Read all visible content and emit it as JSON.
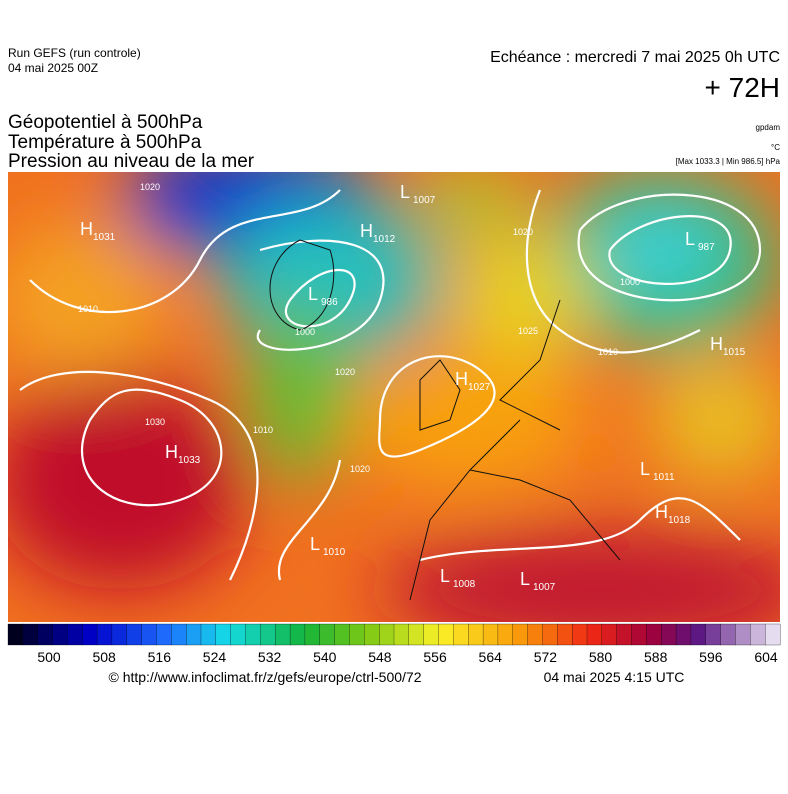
{
  "header": {
    "run": "Run GEFS (run controle)",
    "date": "04 mai 2025 00Z",
    "echeance": "Echéance : mercredi 7 mai 2025 0h UTC",
    "lead": "+ 72H",
    "titles": [
      "Géopotentiel à 500hPa",
      "Température à 500hPa",
      "Pression au niveau de la mer"
    ],
    "units": [
      "gpdam",
      "°C",
      "[Max 1033.3 | Min 986.5] hPa"
    ]
  },
  "pressure_centers": [
    {
      "type": "H",
      "value": "1031"
    },
    {
      "type": "L",
      "value": "1007"
    },
    {
      "type": "H",
      "value": "1012"
    },
    {
      "type": "L",
      "value": "986"
    },
    {
      "type": "L",
      "value": "987"
    },
    {
      "type": "H",
      "value": "1015"
    },
    {
      "type": "H",
      "value": "1027"
    },
    {
      "type": "H",
      "value": "1033"
    },
    {
      "type": "L",
      "value": "1010"
    },
    {
      "type": "L",
      "value": "1011"
    },
    {
      "type": "H",
      "value": "1018"
    },
    {
      "type": "L",
      "value": "1008"
    },
    {
      "type": "L",
      "value": "1007"
    }
  ],
  "isobar_labels": [
    "1020",
    "1010",
    "1000",
    "1020",
    "1030",
    "1020",
    "1010",
    "1000",
    "1020",
    "1025",
    "1010"
  ],
  "colorbar": {
    "ticks": [
      500,
      508,
      516,
      524,
      532,
      540,
      548,
      556,
      564,
      572,
      580,
      588,
      596,
      604
    ]
  },
  "footer": {
    "source": "© http://www.infoclimat.fr/z/gefs/europe/ctrl-500/72",
    "time": "04 mai 2025  4:15 UTC"
  }
}
